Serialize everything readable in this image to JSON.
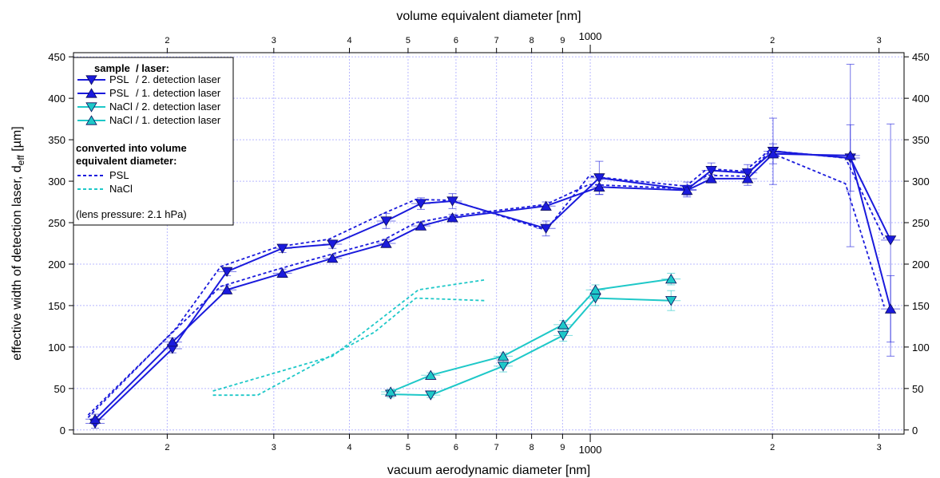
{
  "chart_data": {
    "type": "line",
    "xlabel": "vacuum aerodynamic diameter [nm]",
    "x2label": "volume equivalent diameter [nm]",
    "ylabel": "effective width of detection laser, d",
    "ylabel_sub": "eff",
    "ylabel_unit": " [µm]",
    "x_scale": "log",
    "xlim": [
      140,
      3300
    ],
    "ylim": [
      -5,
      455
    ],
    "x_ticks": [
      {
        "v": 200,
        "label": "2"
      },
      {
        "v": 300,
        "label": "3"
      },
      {
        "v": 400,
        "label": "4"
      },
      {
        "v": 500,
        "label": "5"
      },
      {
        "v": 600,
        "label": "6"
      },
      {
        "v": 700,
        "label": "7"
      },
      {
        "v": 800,
        "label": "8"
      },
      {
        "v": 900,
        "label": "9"
      },
      {
        "v": 1000,
        "label": "1000",
        "major": true
      },
      {
        "v": 2000,
        "label": "2"
      },
      {
        "v": 3000,
        "label": "3"
      }
    ],
    "y_ticks": [
      0,
      50,
      100,
      150,
      200,
      250,
      300,
      350,
      400,
      450
    ],
    "grid": true,
    "legend_position": "top-left",
    "legend": {
      "header_sample": "sample",
      "header_laser": "/ laser:",
      "entries": [
        {
          "sample": "PSL",
          "laser": "/ 2. detection laser"
        },
        {
          "sample": "PSL",
          "laser": "/ 1. detection laser"
        },
        {
          "sample": "NaCl",
          "laser": "/ 2. detection laser"
        },
        {
          "sample": "NaCl",
          "laser": "/ 1. detection laser"
        }
      ],
      "converted_lines": [
        "converted into volume",
        "equivalent diameter:"
      ],
      "converted_entries": [
        "PSL",
        "NaCl"
      ],
      "note": "(lens pressure: 2.1 hPa)"
    },
    "colors": {
      "psl": "#1a1adc",
      "nacl": "#1ec8c8",
      "grid": "#b8b8ff"
    },
    "series": [
      {
        "name": "PSL / 2. detection laser",
        "color": "#1a1adc",
        "marker": "down",
        "style": "solid",
        "points": [
          {
            "x": 152,
            "y": 8,
            "ye": 6
          },
          {
            "x": 204,
            "y": 98,
            "ye": 5
          },
          {
            "x": 251,
            "y": 191,
            "ye": 5
          },
          {
            "x": 310,
            "y": 219,
            "ye": 5
          },
          {
            "x": 375,
            "y": 224,
            "ye": 5
          },
          {
            "x": 460,
            "y": 252,
            "ye": 9
          },
          {
            "x": 525,
            "y": 273,
            "ye": 7
          },
          {
            "x": 592,
            "y": 276,
            "ye": 9
          },
          {
            "x": 845,
            "y": 243,
            "ye": 9
          },
          {
            "x": 1035,
            "y": 304,
            "ye": 20
          },
          {
            "x": 1445,
            "y": 290,
            "ye": 9
          },
          {
            "x": 1585,
            "y": 313,
            "ye": 9
          },
          {
            "x": 1820,
            "y": 310,
            "ye": 10
          },
          {
            "x": 2005,
            "y": 336,
            "ye": 40
          },
          {
            "x": 2690,
            "y": 328,
            "ye": 40
          },
          {
            "x": 3135,
            "y": 229,
            "ye": 140
          }
        ]
      },
      {
        "name": "PSL / 1. detection laser",
        "color": "#1a1adc",
        "marker": "up",
        "style": "solid",
        "points": [
          {
            "x": 152,
            "y": 13,
            "ye": 6
          },
          {
            "x": 204,
            "y": 106,
            "ye": 5
          },
          {
            "x": 251,
            "y": 169,
            "ye": 5
          },
          {
            "x": 310,
            "y": 189,
            "ye": 5
          },
          {
            "x": 375,
            "y": 207,
            "ye": 4
          },
          {
            "x": 460,
            "y": 225,
            "ye": 5
          },
          {
            "x": 525,
            "y": 246,
            "ye": 4
          },
          {
            "x": 592,
            "y": 256,
            "ye": 4
          },
          {
            "x": 845,
            "y": 270,
            "ye": 5
          },
          {
            "x": 1035,
            "y": 293,
            "ye": 9
          },
          {
            "x": 1445,
            "y": 289,
            "ye": 6
          },
          {
            "x": 1585,
            "y": 303,
            "ye": 5
          },
          {
            "x": 1820,
            "y": 303,
            "ye": 8
          },
          {
            "x": 2005,
            "y": 333,
            "ye": 12
          },
          {
            "x": 2690,
            "y": 331,
            "ye": 110
          },
          {
            "x": 3135,
            "y": 146,
            "ye": 40
          }
        ]
      },
      {
        "name": "NaCl / 2. detection laser",
        "color": "#1ec8c8",
        "marker": "down",
        "style": "solid",
        "points": [
          {
            "x": 468,
            "y": 43,
            "ye": 4
          },
          {
            "x": 545,
            "y": 42,
            "ye": 3
          },
          {
            "x": 718,
            "y": 77,
            "ye": 7
          },
          {
            "x": 902,
            "y": 114,
            "ye": 7
          },
          {
            "x": 1020,
            "y": 159,
            "ye": 9
          },
          {
            "x": 1360,
            "y": 156,
            "ye": 12
          }
        ]
      },
      {
        "name": "NaCl / 1. detection laser",
        "color": "#1ec8c8",
        "marker": "up",
        "style": "solid",
        "points": [
          {
            "x": 468,
            "y": 46,
            "ye": 3
          },
          {
            "x": 545,
            "y": 66,
            "ye": 3
          },
          {
            "x": 718,
            "y": 89,
            "ye": 4
          },
          {
            "x": 902,
            "y": 127,
            "ye": 5
          },
          {
            "x": 1020,
            "y": 169,
            "ye": 6
          },
          {
            "x": 1360,
            "y": 182,
            "ye": 7
          }
        ]
      },
      {
        "name": "PSL converted, laser 2",
        "color": "#1a1adc",
        "marker": "none",
        "style": "dashed",
        "points": [
          {
            "x": 148,
            "y": 15
          },
          {
            "x": 207,
            "y": 123
          },
          {
            "x": 245,
            "y": 197
          },
          {
            "x": 305,
            "y": 221
          },
          {
            "x": 370,
            "y": 230
          },
          {
            "x": 455,
            "y": 261
          },
          {
            "x": 515,
            "y": 278
          },
          {
            "x": 590,
            "y": 277
          },
          {
            "x": 845,
            "y": 241
          },
          {
            "x": 995,
            "y": 306
          },
          {
            "x": 1440,
            "y": 294
          },
          {
            "x": 1560,
            "y": 315
          },
          {
            "x": 1800,
            "y": 312
          },
          {
            "x": 1975,
            "y": 337
          },
          {
            "x": 2640,
            "y": 328
          },
          {
            "x": 3060,
            "y": 231
          }
        ]
      },
      {
        "name": "PSL converted, laser 1",
        "color": "#1a1adc",
        "marker": "none",
        "style": "dashed",
        "points": [
          {
            "x": 148,
            "y": 18
          },
          {
            "x": 207,
            "y": 122
          },
          {
            "x": 245,
            "y": 173
          },
          {
            "x": 305,
            "y": 194
          },
          {
            "x": 370,
            "y": 211
          },
          {
            "x": 455,
            "y": 229
          },
          {
            "x": 515,
            "y": 250
          },
          {
            "x": 590,
            "y": 258
          },
          {
            "x": 845,
            "y": 272
          },
          {
            "x": 995,
            "y": 296
          },
          {
            "x": 1440,
            "y": 291
          },
          {
            "x": 1560,
            "y": 307
          },
          {
            "x": 1800,
            "y": 306
          },
          {
            "x": 1975,
            "y": 335
          },
          {
            "x": 2640,
            "y": 297
          },
          {
            "x": 3060,
            "y": 149
          }
        ]
      },
      {
        "name": "NaCl converted, laser 2",
        "color": "#1ec8c8",
        "marker": "none",
        "style": "dashed",
        "points": [
          {
            "x": 238,
            "y": 42
          },
          {
            "x": 282,
            "y": 42
          },
          {
            "x": 440,
            "y": 118
          },
          {
            "x": 515,
            "y": 159
          },
          {
            "x": 670,
            "y": 156
          }
        ]
      },
      {
        "name": "NaCl converted, laser 1",
        "color": "#1ec8c8",
        "marker": "none",
        "style": "dashed",
        "points": [
          {
            "x": 238,
            "y": 47
          },
          {
            "x": 375,
            "y": 89
          },
          {
            "x": 440,
            "y": 128
          },
          {
            "x": 520,
            "y": 169
          },
          {
            "x": 670,
            "y": 181
          }
        ]
      }
    ]
  }
}
